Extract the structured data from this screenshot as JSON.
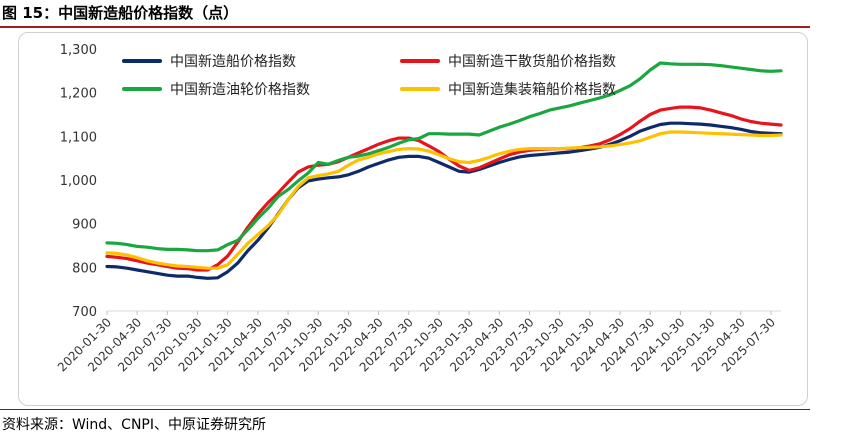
{
  "figure": {
    "title": "图 15：中国新造船价格指数（点）",
    "source": "资料来源：Wind、CNPI、中原证券研究所"
  },
  "chart_data": {
    "type": "line",
    "title": "",
    "xlabel": "",
    "ylabel": "",
    "ylim": [
      700,
      1300
    ],
    "yticks": [
      "700",
      "800",
      "900",
      "1,000",
      "1,100",
      "1,200",
      "1,300"
    ],
    "grid": false,
    "legend_position": "top",
    "x": [
      "2020-01-30",
      "2020-02-29",
      "2020-03-30",
      "2020-04-30",
      "2020-05-30",
      "2020-06-30",
      "2020-07-30",
      "2020-08-30",
      "2020-09-30",
      "2020-10-30",
      "2020-11-30",
      "2020-12-30",
      "2021-01-30",
      "2021-02-28",
      "2021-03-30",
      "2021-04-30",
      "2021-05-30",
      "2021-06-30",
      "2021-07-30",
      "2021-08-30",
      "2021-09-30",
      "2021-10-30",
      "2021-11-30",
      "2021-12-30",
      "2022-01-30",
      "2022-02-28",
      "2022-03-30",
      "2022-04-30",
      "2022-05-30",
      "2022-06-30",
      "2022-07-30",
      "2022-08-30",
      "2022-09-30",
      "2022-10-30",
      "2022-11-30",
      "2022-12-30",
      "2023-01-30",
      "2023-02-28",
      "2023-03-30",
      "2023-04-30",
      "2023-05-30",
      "2023-06-30",
      "2023-07-30",
      "2023-08-30",
      "2023-09-30",
      "2023-10-30",
      "2023-11-30",
      "2023-12-30",
      "2024-01-30",
      "2024-02-29",
      "2024-03-30",
      "2024-04-30",
      "2024-05-30",
      "2024-06-30",
      "2024-07-30",
      "2024-08-30",
      "2024-09-30",
      "2024-10-30",
      "2024-11-30",
      "2024-12-30",
      "2025-01-30",
      "2025-02-28",
      "2025-03-30",
      "2025-04-30",
      "2025-05-30",
      "2025-06-30",
      "2025-07-30",
      "2025-08-30"
    ],
    "x_tick_labels": [
      "2020-01-30",
      "2020-04-30",
      "2020-07-30",
      "2020-10-30",
      "2021-01-30",
      "2021-04-30",
      "2021-07-30",
      "2021-10-30",
      "2022-01-30",
      "2022-04-30",
      "2022-07-30",
      "2022-10-30",
      "2023-01-30",
      "2023-04-30",
      "2023-07-30",
      "2023-10-30",
      "2024-01-30",
      "2024-04-30",
      "2024-07-30",
      "2024-10-30",
      "2025-01-30",
      "2025-04-30",
      "2025-07-30"
    ],
    "x_tick_index_step": 3,
    "series": [
      {
        "name": "中国新造船价格指数",
        "color": "#0d2a6b",
        "values": [
          802,
          801,
          798,
          794,
          790,
          786,
          782,
          780,
          780,
          777,
          775,
          776,
          790,
          810,
          838,
          862,
          890,
          922,
          955,
          982,
          998,
          1002,
          1005,
          1007,
          1012,
          1020,
          1030,
          1038,
          1046,
          1052,
          1054,
          1054,
          1050,
          1040,
          1030,
          1020,
          1018,
          1024,
          1032,
          1040,
          1047,
          1053,
          1056,
          1058,
          1060,
          1062,
          1064,
          1067,
          1071,
          1075,
          1082,
          1090,
          1100,
          1112,
          1120,
          1127,
          1130,
          1130,
          1129,
          1128,
          1126,
          1123,
          1120,
          1116,
          1111,
          1108,
          1107,
          1106
        ]
      },
      {
        "name": "中国新造干散货船价格指数",
        "color": "#e8141b",
        "values": [
          825,
          823,
          820,
          815,
          810,
          806,
          802,
          798,
          797,
          794,
          794,
          806,
          826,
          858,
          892,
          922,
          948,
          970,
          995,
          1018,
          1030,
          1034,
          1036,
          1042,
          1052,
          1062,
          1072,
          1082,
          1090,
          1096,
          1096,
          1090,
          1078,
          1065,
          1048,
          1032,
          1022,
          1028,
          1038,
          1048,
          1058,
          1064,
          1068,
          1070,
          1071,
          1072,
          1072,
          1074,
          1078,
          1083,
          1092,
          1104,
          1118,
          1135,
          1150,
          1160,
          1164,
          1167,
          1167,
          1165,
          1160,
          1154,
          1148,
          1140,
          1134,
          1130,
          1128,
          1126
        ]
      },
      {
        "name": "中国新造油轮价格指数",
        "color": "#1aa73f",
        "values": [
          856,
          855,
          852,
          848,
          846,
          843,
          841,
          841,
          840,
          838,
          838,
          840,
          852,
          862,
          886,
          912,
          935,
          962,
          978,
          998,
          1016,
          1040,
          1036,
          1045,
          1052,
          1055,
          1060,
          1067,
          1075,
          1084,
          1092,
          1095,
          1106,
          1106,
          1105,
          1105,
          1105,
          1103,
          1112,
          1121,
          1128,
          1136,
          1145,
          1152,
          1160,
          1165,
          1170,
          1176,
          1182,
          1188,
          1195,
          1205,
          1216,
          1232,
          1252,
          1268,
          1266,
          1265,
          1265,
          1265,
          1264,
          1262,
          1259,
          1256,
          1253,
          1250,
          1249,
          1250
        ]
      },
      {
        "name": "中国新造集装箱船价格指数",
        "color": "#ffc000",
        "values": [
          833,
          832,
          828,
          822,
          815,
          810,
          806,
          803,
          802,
          800,
          798,
          798,
          806,
          830,
          855,
          875,
          895,
          920,
          955,
          985,
          1005,
          1010,
          1014,
          1020,
          1034,
          1046,
          1052,
          1060,
          1065,
          1070,
          1072,
          1071,
          1066,
          1058,
          1049,
          1042,
          1040,
          1045,
          1052,
          1060,
          1066,
          1070,
          1072,
          1072,
          1072,
          1072,
          1073,
          1074,
          1075,
          1076,
          1078,
          1081,
          1085,
          1090,
          1098,
          1106,
          1110,
          1110,
          1109,
          1108,
          1107,
          1106,
          1105,
          1104,
          1103,
          1102,
          1102,
          1103
        ]
      }
    ]
  }
}
